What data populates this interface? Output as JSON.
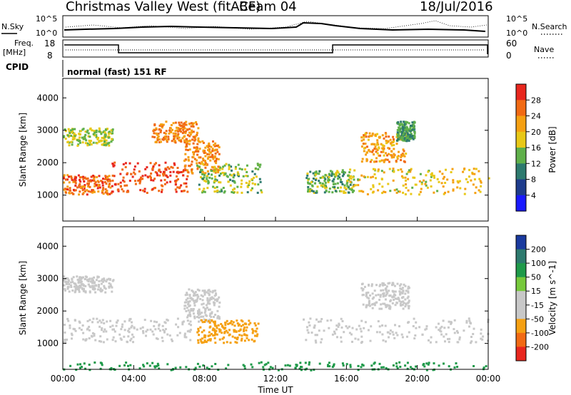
{
  "header": {
    "station": "Christmas Valley West (fitACF)",
    "beam": "Beam 04",
    "date": "18/Jul/2016"
  },
  "summary": {
    "left_top": "N.Sky",
    "right_top": "N.Search",
    "nsky_ticks": [
      "10^5",
      "10^0"
    ],
    "freq_label_1": "Freq.",
    "freq_label_2": "[MHz]",
    "freq_ticks": [
      "18",
      "8"
    ],
    "nave_label": "Nave",
    "nave_ticks": [
      "60",
      "0"
    ],
    "cpid_label": "CPID",
    "cpid_value": "normal (fast) 151 RF"
  },
  "x_axis": {
    "label": "Time UT",
    "ticks": [
      "00:00",
      "04:00",
      "08:00",
      "12:00",
      "16:00",
      "20:00",
      "00:00"
    ]
  },
  "chart_data": [
    {
      "type": "heatmap",
      "name": "power",
      "xlabel": "Time UT",
      "ylabel": "Slant Range [km]",
      "xlim": [
        0,
        24
      ],
      "ylim": [
        200,
        4600
      ],
      "yticks": [
        "1000",
        "2000",
        "3000",
        "4000"
      ],
      "colorbar_label": "Power [dB]",
      "colorbar_ticks": [
        "28",
        "24",
        "20",
        "16",
        "12",
        "8",
        "4"
      ],
      "colorbar_colors": [
        "#e8271e",
        "#f16a14",
        "#f5a012",
        "#e8c817",
        "#5fb04a",
        "#2d7a6e",
        "#1e3c8c",
        "#1a1aff"
      ],
      "regions": [
        {
          "x": [
            0,
            2.7
          ],
          "y": [
            1050,
            1650
          ],
          "level": 24
        },
        {
          "x": [
            2.7,
            7.0
          ],
          "y": [
            1100,
            2050
          ],
          "level": 26
        },
        {
          "x": [
            6.8,
            8.8
          ],
          "y": [
            1700,
            2700
          ],
          "level": 22
        },
        {
          "x": [
            0,
            2.8
          ],
          "y": [
            2550,
            3100
          ],
          "level": 14
        },
        {
          "x": [
            5.0,
            7.6
          ],
          "y": [
            2650,
            3300
          ],
          "level": 22
        },
        {
          "x": [
            7.5,
            11.2
          ],
          "y": [
            1100,
            2000
          ],
          "level": 13
        },
        {
          "x": [
            13.7,
            16.4
          ],
          "y": [
            1100,
            1800
          ],
          "level": 12
        },
        {
          "x": [
            16.0,
            24.0
          ],
          "y": [
            1050,
            1850
          ],
          "level": 17
        },
        {
          "x": [
            16.8,
            19.3
          ],
          "y": [
            2050,
            2950
          ],
          "level": 20
        },
        {
          "x": [
            18.8,
            19.8
          ],
          "y": [
            2700,
            3300
          ],
          "level": 10
        }
      ]
    },
    {
      "type": "heatmap",
      "name": "velocity",
      "xlabel": "Time UT",
      "ylabel": "Slant Range [km]",
      "xlim": [
        0,
        24
      ],
      "ylim": [
        200,
        4600
      ],
      "yticks": [
        "1000",
        "2000",
        "3000",
        "4000"
      ],
      "colorbar_label": "Velocity [m s^-1]",
      "colorbar_ticks": [
        "200",
        "100",
        "50",
        "15",
        "-15",
        "-50",
        "-100",
        "-200"
      ],
      "colorbar_colors": [
        "#1a3a9e",
        "#2d7a6e",
        "#1f9a4a",
        "#77c93c",
        "#c8c8c8",
        "#c8c8c8",
        "#f5a012",
        "#f16a14",
        "#e8271e"
      ],
      "regions": [
        {
          "x": [
            0,
            7.2
          ],
          "y": [
            1050,
            1800
          ],
          "level": 0
        },
        {
          "x": [
            6.8,
            8.8
          ],
          "y": [
            1700,
            2700
          ],
          "level": 0
        },
        {
          "x": [
            0,
            2.8
          ],
          "y": [
            2600,
            3100
          ],
          "level": 0
        },
        {
          "x": [
            7.5,
            11.0
          ],
          "y": [
            1050,
            1750
          ],
          "level": -60
        },
        {
          "x": [
            13.5,
            24.0
          ],
          "y": [
            1050,
            1800
          ],
          "level": 0
        },
        {
          "x": [
            16.8,
            19.5
          ],
          "y": [
            2100,
            2900
          ],
          "level": 0
        },
        {
          "x": [
            0,
            24
          ],
          "y": [
            200,
            450
          ],
          "level": 40
        }
      ]
    }
  ]
}
